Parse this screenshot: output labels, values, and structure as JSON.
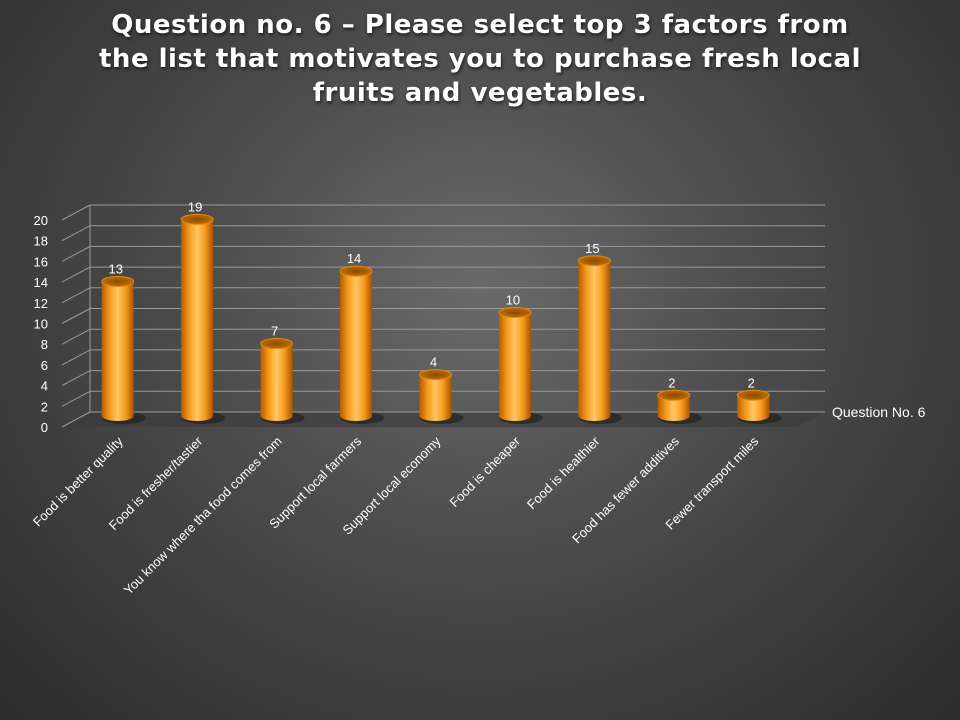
{
  "chart_data": {
    "type": "bar",
    "title": "Question no. 6 – Please select top 3 factors from the list that motivates you to purchase fresh local fruits and vegetables.",
    "categories": [
      "Food is better quality",
      "Food is fresher/tastier",
      "You know where tha food comes from",
      "Support local farmers",
      "Support local economy",
      "Food is cheaper",
      "Food is healthier",
      "Food has fewer additives",
      "Fewer transport miles"
    ],
    "series": [
      {
        "name": "Question No. 6",
        "values": [
          13,
          19,
          7,
          14,
          4,
          10,
          15,
          2,
          2
        ]
      }
    ],
    "yticks": [
      "0",
      "2",
      "4",
      "6",
      "8",
      "10",
      "12",
      "14",
      "16",
      "18",
      "20"
    ],
    "ylim": [
      0,
      20
    ],
    "grid": true,
    "legend_position": "right",
    "bar_color": "#F5A623",
    "bar_style": "3d-cylinder"
  }
}
